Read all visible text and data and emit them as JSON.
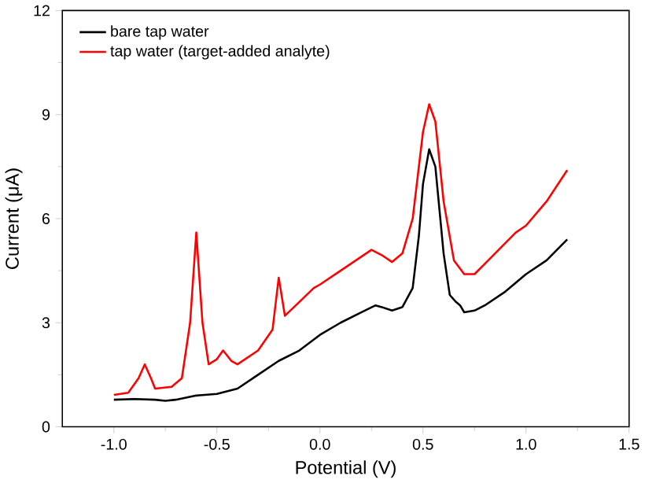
{
  "chart_data": {
    "type": "line",
    "xlabel": "Potential (V)",
    "ylabel": "Current (μA)",
    "xlim": [
      -1.25,
      1.5
    ],
    "ylim": [
      0,
      12
    ],
    "xticks": [
      {
        "value": -1.0,
        "label": "-1.0"
      },
      {
        "value": -0.5,
        "label": "-0.5"
      },
      {
        "value": 0.0,
        "label": "0.0"
      },
      {
        "value": 0.5,
        "label": "0.5"
      },
      {
        "value": 1.0,
        "label": "1.0"
      },
      {
        "value": 1.5,
        "label": "1.5"
      }
    ],
    "yticks": [
      0,
      3,
      6,
      9,
      12
    ],
    "grid": false,
    "legend": "top left",
    "marker": "none",
    "line_style": "solid",
    "series": [
      {
        "name": "bare tap water",
        "color": "#000000",
        "x": [
          -1.0,
          -0.9,
          -0.8,
          -0.75,
          -0.7,
          -0.6,
          -0.5,
          -0.4,
          -0.3,
          -0.2,
          -0.1,
          0.0,
          0.1,
          0.2,
          0.27,
          0.3,
          0.35,
          0.4,
          0.45,
          0.48,
          0.5,
          0.53,
          0.56,
          0.6,
          0.63,
          0.66,
          0.68,
          0.7,
          0.75,
          0.8,
          0.9,
          1.0,
          1.1,
          1.2
        ],
        "values": [
          0.78,
          0.8,
          0.78,
          0.75,
          0.78,
          0.9,
          0.95,
          1.1,
          1.5,
          1.9,
          2.2,
          2.65,
          3.0,
          3.3,
          3.5,
          3.45,
          3.35,
          3.45,
          4.0,
          5.5,
          7.0,
          8.0,
          7.5,
          5.0,
          3.8,
          3.6,
          3.5,
          3.3,
          3.35,
          3.5,
          3.9,
          4.4,
          4.8,
          5.4
        ]
      },
      {
        "name": "tap water (target-added analyte)",
        "color": "#ff0000",
        "x": [
          -1.0,
          -0.93,
          -0.88,
          -0.85,
          -0.82,
          -0.8,
          -0.72,
          -0.67,
          -0.63,
          -0.6,
          -0.57,
          -0.54,
          -0.5,
          -0.47,
          -0.43,
          -0.4,
          -0.3,
          -0.23,
          -0.2,
          -0.17,
          -0.1,
          -0.03,
          0.0,
          0.1,
          0.2,
          0.25,
          0.3,
          0.35,
          0.4,
          0.45,
          0.5,
          0.53,
          0.56,
          0.6,
          0.65,
          0.7,
          0.75,
          0.8,
          0.9,
          0.95,
          1.0,
          1.1,
          1.2
        ],
        "values": [
          0.92,
          0.98,
          1.4,
          1.8,
          1.4,
          1.1,
          1.15,
          1.4,
          3.0,
          5.6,
          3.0,
          1.8,
          1.95,
          2.2,
          1.9,
          1.8,
          2.2,
          2.8,
          4.3,
          3.2,
          3.6,
          4.0,
          4.1,
          4.5,
          4.9,
          5.1,
          4.95,
          4.75,
          5.0,
          6.0,
          8.5,
          9.3,
          8.8,
          6.5,
          4.8,
          4.4,
          4.4,
          4.7,
          5.3,
          5.6,
          5.8,
          6.5,
          7.4
        ]
      }
    ]
  }
}
